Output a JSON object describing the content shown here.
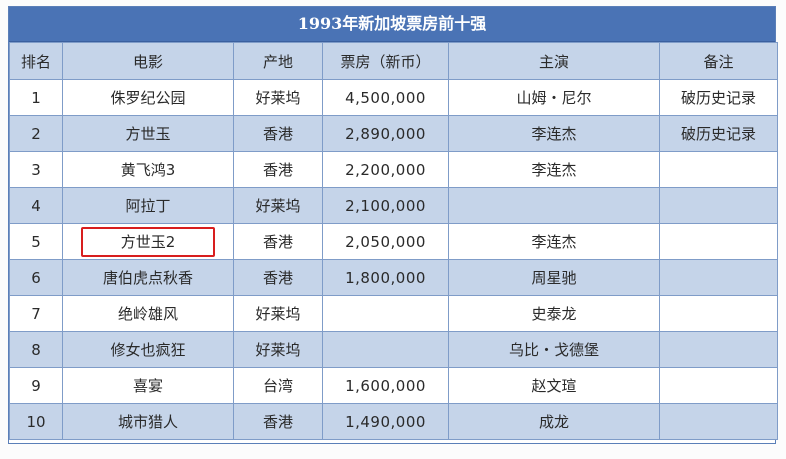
{
  "title": "1993年新加坡票房前十强",
  "headers": {
    "rank": "排名",
    "film": "电影",
    "origin": "产地",
    "box_office": "票房（新币）",
    "cast": "主演",
    "note": "备注"
  },
  "rows": [
    {
      "rank": "1",
      "film": "侏罗纪公园",
      "origin": "好莱坞",
      "box_office": "4,500,000",
      "cast": "山姆・尼尔",
      "note": "破历史记录"
    },
    {
      "rank": "2",
      "film": "方世玉",
      "origin": "香港",
      "box_office": "2,890,000",
      "cast": "李连杰",
      "note": "破历史记录"
    },
    {
      "rank": "3",
      "film": "黄飞鸿3",
      "origin": "香港",
      "box_office": "2,200,000",
      "cast": "李连杰",
      "note": ""
    },
    {
      "rank": "4",
      "film": "阿拉丁",
      "origin": "好莱坞",
      "box_office": "2,100,000",
      "cast": "",
      "note": ""
    },
    {
      "rank": "5",
      "film": "方世玉2",
      "origin": "香港",
      "box_office": "2,050,000",
      "cast": "李连杰",
      "note": ""
    },
    {
      "rank": "6",
      "film": "唐伯虎点秋香",
      "origin": "香港",
      "box_office": "1,800,000",
      "cast": "周星驰",
      "note": ""
    },
    {
      "rank": "7",
      "film": "绝岭雄风",
      "origin": "好莱坞",
      "box_office": "",
      "cast": "史泰龙",
      "note": ""
    },
    {
      "rank": "8",
      "film": "修女也疯狂",
      "origin": "好莱坞",
      "box_office": "",
      "cast": "乌比・戈德堡",
      "note": ""
    },
    {
      "rank": "9",
      "film": "喜宴",
      "origin": "台湾",
      "box_office": "1,600,000",
      "cast": "赵文瑄",
      "note": ""
    },
    {
      "rank": "10",
      "film": "城市猎人",
      "origin": "香港",
      "box_office": "1,490,000",
      "cast": "成龙",
      "note": ""
    }
  ],
  "highlighted_row_rank": "5",
  "colors": {
    "title_bg": "#4a73b5",
    "alt_row_bg": "#c5d4e9",
    "border": "#7f9cc8",
    "note_text": "#e0202a",
    "highlight_border": "#d81e1e"
  }
}
